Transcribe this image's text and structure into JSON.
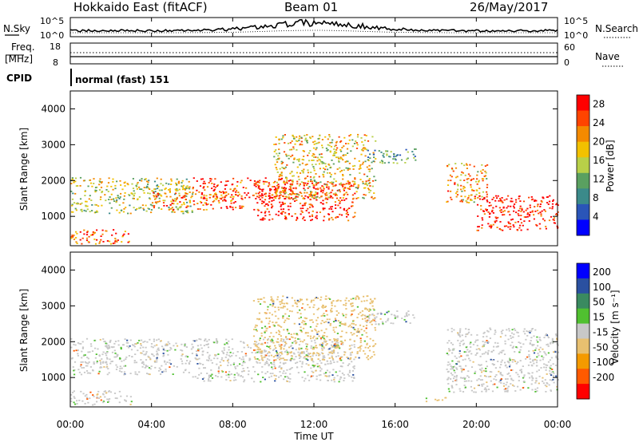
{
  "header": {
    "station": "Hokkaido East (fitACF)",
    "beam": "Beam 01",
    "date": "26/May/2017"
  },
  "noise_panel": {
    "left_label": "N.Sky",
    "left_tick_top": "10^5",
    "left_tick_bottom": "10^0",
    "right_tick_top": "10^5",
    "right_tick_bottom": "10^0",
    "right_label": "N.Search"
  },
  "freq_panel": {
    "left_label_1": "Freq.",
    "left_label_2": "[MHz]",
    "left_tick_top": "18",
    "left_tick_bottom": "8",
    "right_tick_top": "60",
    "right_tick_bottom": "0",
    "right_label": "Nave"
  },
  "cpid_panel": {
    "left_label": "CPID",
    "mode_text": "normal (fast) 151"
  },
  "colors": {
    "power_scale": [
      "#0000ff",
      "#2a55b8",
      "#3b8a8a",
      "#5aa060",
      "#b8d048",
      "#f2c100",
      "#f48a00",
      "#ff4400",
      "#ff0000"
    ],
    "velocity_scale": [
      "#ff0000",
      "#ff5a00",
      "#f49a00",
      "#e8c070",
      "#c8c8c8",
      "#50c030",
      "#3a8a60",
      "#2a50a0",
      "#0000ff"
    ],
    "ground_scatter_gray": "#c8c8c8"
  },
  "chart_data": [
    {
      "type": "heatmap",
      "title": "",
      "xlabel": "",
      "ylabel": "Slant Range [km]",
      "xlim": [
        "00:00",
        "24:00"
      ],
      "ylim": [
        180,
        4500
      ],
      "x_ticks": [
        "00:00",
        "04:00",
        "08:00",
        "12:00",
        "16:00",
        "20:00",
        "00:00"
      ],
      "y_ticks": [
        "1000",
        "2000",
        "3000",
        "4000"
      ],
      "colorbar": {
        "label": "Power [dB]",
        "ticks": [
          "4",
          "8",
          "12",
          "16",
          "20",
          "24",
          "28"
        ],
        "range": [
          0,
          30
        ]
      },
      "bands": [
        {
          "x_start": 0,
          "x_end": 6,
          "range_low": 1100,
          "range_high": 2100,
          "value": 16
        },
        {
          "x_start": 4,
          "x_end": 8.5,
          "range_low": 1200,
          "range_high": 1700,
          "value": 24
        },
        {
          "x_start": 6,
          "x_end": 11,
          "range_low": 1500,
          "range_high": 2100,
          "value": 26
        },
        {
          "x_start": 9,
          "x_end": 14,
          "range_low": 900,
          "range_high": 2000,
          "value": 28
        },
        {
          "x_start": 10,
          "x_end": 15,
          "range_low": 1500,
          "range_high": 3300,
          "value": 18
        },
        {
          "x_start": 14.5,
          "x_end": 17,
          "range_low": 2500,
          "range_high": 2900,
          "value": 10
        },
        {
          "x_start": 18.5,
          "x_end": 20.5,
          "range_low": 1400,
          "range_high": 2500,
          "value": 20
        },
        {
          "x_start": 20,
          "x_end": 24,
          "range_low": 600,
          "range_high": 1600,
          "value": 28
        },
        {
          "x_start": 0,
          "x_end": 3,
          "range_low": 250,
          "range_high": 650,
          "value": 24
        }
      ]
    },
    {
      "type": "heatmap",
      "title": "",
      "xlabel": "Time UT",
      "ylabel": "Slant Range [km]",
      "xlim": [
        "00:00",
        "24:00"
      ],
      "ylim": [
        180,
        4500
      ],
      "x_ticks": [
        "00:00",
        "04:00",
        "08:00",
        "12:00",
        "16:00",
        "20:00",
        "00:00"
      ],
      "y_ticks": [
        "1000",
        "2000",
        "3000",
        "4000"
      ],
      "colorbar": {
        "label": "Velocity [m s⁻¹]",
        "ticks": [
          "200",
          "100",
          "50",
          "15",
          "-15",
          "-50",
          "-100",
          "-200"
        ],
        "range": [
          -250,
          250
        ]
      },
      "bands": [
        {
          "x_start": 0,
          "x_end": 6,
          "range_low": 1100,
          "range_high": 2100,
          "value": 0
        },
        {
          "x_start": 6,
          "x_end": 14,
          "range_low": 900,
          "range_high": 2100,
          "value": 0
        },
        {
          "x_start": 9,
          "x_end": 15,
          "range_low": 1500,
          "range_high": 3300,
          "value": -30
        },
        {
          "x_start": 14.5,
          "x_end": 17,
          "range_low": 2500,
          "range_high": 2900,
          "value": 0
        },
        {
          "x_start": 18.5,
          "x_end": 24,
          "range_low": 600,
          "range_high": 2400,
          "value": 0
        },
        {
          "x_start": 0,
          "x_end": 3,
          "range_low": 250,
          "range_high": 650,
          "value": 0
        },
        {
          "x_start": 17.5,
          "x_end": 18.5,
          "range_low": 350,
          "range_high": 500,
          "value": -60
        }
      ]
    }
  ]
}
